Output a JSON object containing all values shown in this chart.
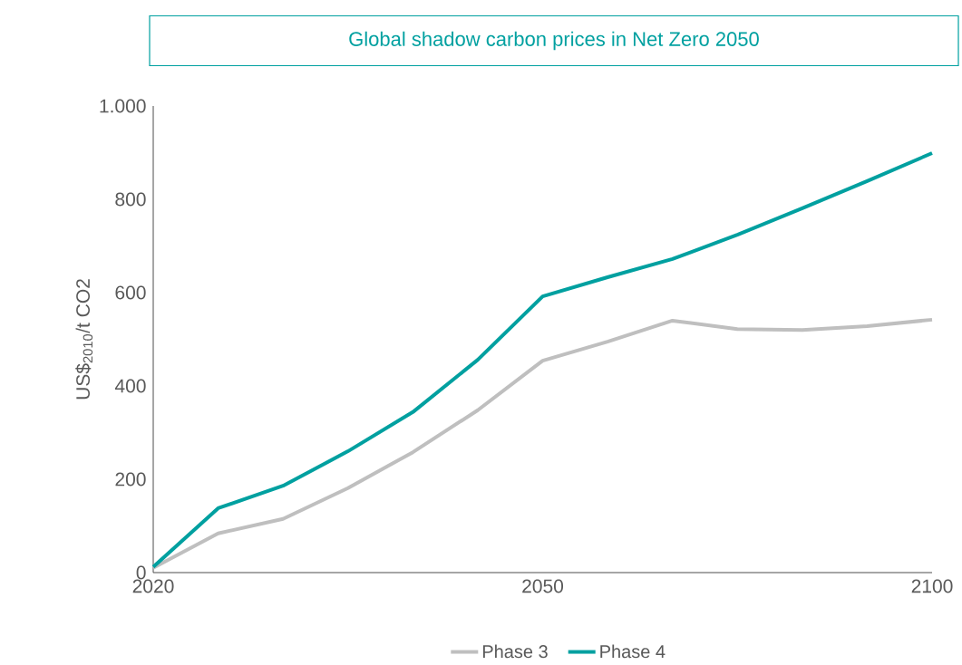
{
  "chart_data": {
    "type": "line",
    "title": "Global shadow carbon prices in Net Zero 2050",
    "ylabel": "US$$_{2010}$/t CO2",
    "categories": [
      "2020",
      null,
      null,
      null,
      null,
      null,
      "2050",
      null,
      null,
      null,
      null,
      null,
      "2100"
    ],
    "series": [
      {
        "name": "Phase 3",
        "color": "#bfbfbf",
        "values": [
          10,
          84,
          115,
          181,
          258,
          348,
          454,
          495,
          540,
          522,
          520,
          528,
          542
        ]
      },
      {
        "name": "Phase 4",
        "color": "#00a0a0",
        "values": [
          12,
          138,
          186,
          260,
          344,
          456,
          592,
          633,
          672,
          724,
          781,
          839,
          899
        ]
      }
    ],
    "ylim": [
      0,
      1000
    ],
    "yticks": [
      0,
      200,
      400,
      600,
      800,
      {
        "value": 1000,
        "label": "1.000"
      }
    ],
    "grid": false,
    "legend": "bottom",
    "marker": "none",
    "line_style": "solid"
  }
}
